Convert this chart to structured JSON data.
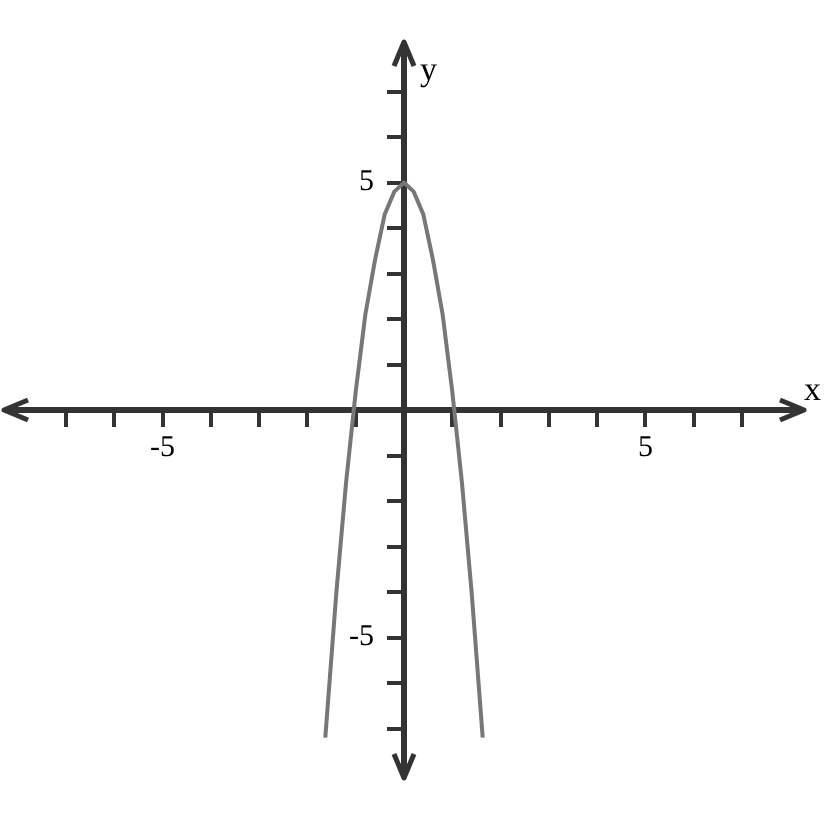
{
  "chart_data": {
    "type": "line",
    "xlabel": "x",
    "ylabel": "y",
    "x": [
      -1.63,
      -1.4,
      -1.2,
      -1,
      -0.8,
      -0.6,
      -0.4,
      -0.2,
      0,
      0.2,
      0.4,
      0.6,
      0.8,
      1,
      1.2,
      1.4,
      1.63
    ],
    "series": [
      {
        "color": "#777777",
        "values": [
          -7.2,
          -4,
          -1.6,
          0.4,
          2.1,
          3.3,
          4.3,
          4.8,
          5,
          4.8,
          4.3,
          3.3,
          2.1,
          0.4,
          -1.6,
          -4,
          -7.2
        ]
      }
    ],
    "xlim": [
      -8.2,
      8.2
    ],
    "ylim": [
      -8,
      8
    ],
    "xticks": [
      {
        "value": -7,
        "label": null
      },
      {
        "value": -6,
        "label": null
      },
      -5,
      {
        "value": -4,
        "label": null
      },
      {
        "value": -3,
        "label": null
      },
      {
        "value": -2,
        "label": null
      },
      {
        "value": -1,
        "label": null
      },
      {
        "value": 1,
        "label": null
      },
      {
        "value": 2,
        "label": null
      },
      {
        "value": 3,
        "label": null
      },
      {
        "value": 4,
        "label": null
      },
      5,
      {
        "value": 6,
        "label": null
      },
      {
        "value": 7,
        "label": null
      }
    ],
    "yticks": [
      {
        "value": -7,
        "label": null
      },
      {
        "value": -6,
        "label": null
      },
      -5,
      {
        "value": -4,
        "label": null
      },
      {
        "value": -3,
        "label": null
      },
      {
        "value": -2,
        "label": null
      },
      {
        "value": -1,
        "label": null
      },
      {
        "value": 1,
        "label": null
      },
      {
        "value": 2,
        "label": null
      },
      {
        "value": 3,
        "label": null
      },
      {
        "value": 4,
        "label": null
      },
      5,
      {
        "value": 6,
        "label": null
      },
      {
        "value": 7,
        "label": null
      }
    ],
    "grid": false,
    "legend": false,
    "marker": "none",
    "line_style": "solid"
  }
}
